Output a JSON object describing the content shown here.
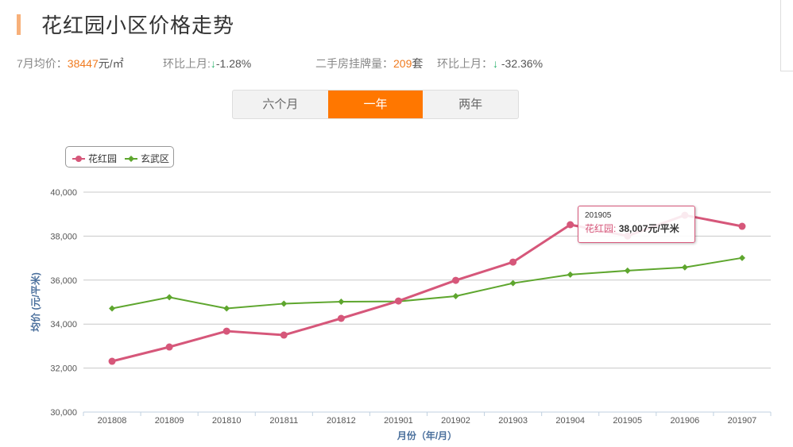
{
  "header": {
    "title": "花红园小区价格走势",
    "accent_color": "#f7b07a"
  },
  "stats": {
    "avg_price_label": "7月均价：",
    "avg_price_value": "38447",
    "avg_price_unit": "元/㎡",
    "mom1_label": "环比上月:",
    "mom1_arrow": "↓",
    "mom1_value": "-1.28%",
    "listings_label": "二手房挂牌量：",
    "listings_value": "209",
    "listings_unit": "套",
    "mom2_label": "环比上月：",
    "mom2_arrow": "↓",
    "mom2_value": "-32.36%"
  },
  "tabs": [
    {
      "label": "六个月",
      "active": false
    },
    {
      "label": "一年",
      "active": true
    },
    {
      "label": "两年",
      "active": false
    }
  ],
  "legend": [
    {
      "label": "花红园",
      "color": "#d6577a"
    },
    {
      "label": "玄武区",
      "color": "#5ea62e"
    }
  ],
  "tooltip": {
    "date": "201905",
    "series": "花红园:",
    "value": "38,007元/平米"
  },
  "chart_data": {
    "type": "line",
    "title": "",
    "xlabel": "月份（年/月）",
    "ylabel": "均价 (元/平米)",
    "ylim": [
      30000,
      40000
    ],
    "yticks": [
      "30,000",
      "32,000",
      "34,000",
      "36,000",
      "38,000",
      "40,000"
    ],
    "grid": true,
    "legend_position": "top-left",
    "categories": [
      "201808",
      "201809",
      "201810",
      "201811",
      "201812",
      "201901",
      "201902",
      "201903",
      "201904",
      "201905",
      "201906",
      "201907"
    ],
    "series": [
      {
        "name": "花红园",
        "color": "#d6577a",
        "marker": "circle",
        "values": [
          32310,
          32960,
          33680,
          33500,
          34260,
          35050,
          35990,
          36820,
          38520,
          38007,
          38950,
          38447
        ]
      },
      {
        "name": "玄武区",
        "color": "#5ea62e",
        "marker": "diamond",
        "values": [
          34710,
          35220,
          34710,
          34930,
          35020,
          35030,
          35270,
          35860,
          36250,
          36430,
          36580,
          37010
        ]
      }
    ]
  }
}
